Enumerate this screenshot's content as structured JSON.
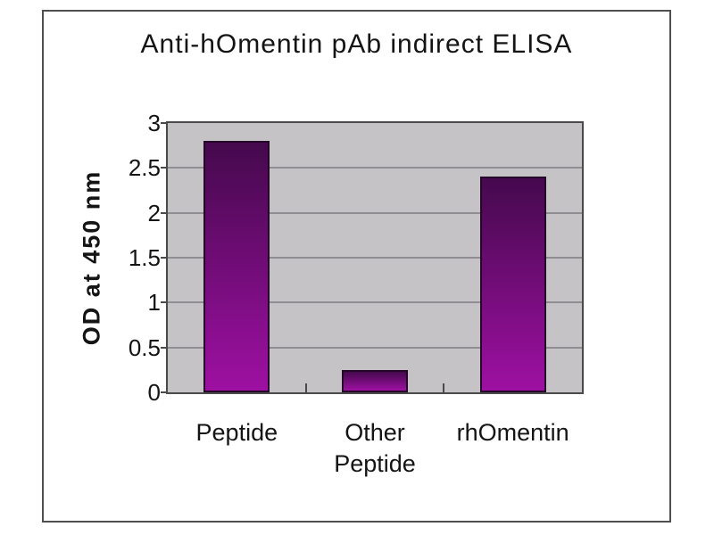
{
  "title": "Anti-hOmentin pAb indirect ELISA",
  "chart_data": {
    "type": "bar",
    "title": "Anti-hOmentin pAb indirect ELISA",
    "categories": [
      "Peptide",
      "Other\nPeptide",
      "rhOmentin"
    ],
    "values": [
      2.8,
      0.25,
      2.4
    ],
    "xlabel": "",
    "ylabel": "OD at 450 nm",
    "ylim": [
      0,
      3
    ],
    "yticks": [
      0,
      0.5,
      1,
      1.5,
      2,
      2.5,
      3
    ],
    "ytick_labels": [
      "0",
      "0.5",
      "1",
      "1.5",
      "2",
      "2.5",
      "3"
    ],
    "grid": true,
    "legend_position": "none",
    "colors": {
      "bar_gradient_top": "#45094d",
      "bar_gradient_bottom": "#9e10a2",
      "bar_border": "#250628",
      "plot_background": "#c5c3c6",
      "gridline": "#8f8d91",
      "axis": "#4a4a4a",
      "frame_border": "#4f4f4f",
      "page_background": "#ffffff",
      "text": "#141414"
    }
  }
}
